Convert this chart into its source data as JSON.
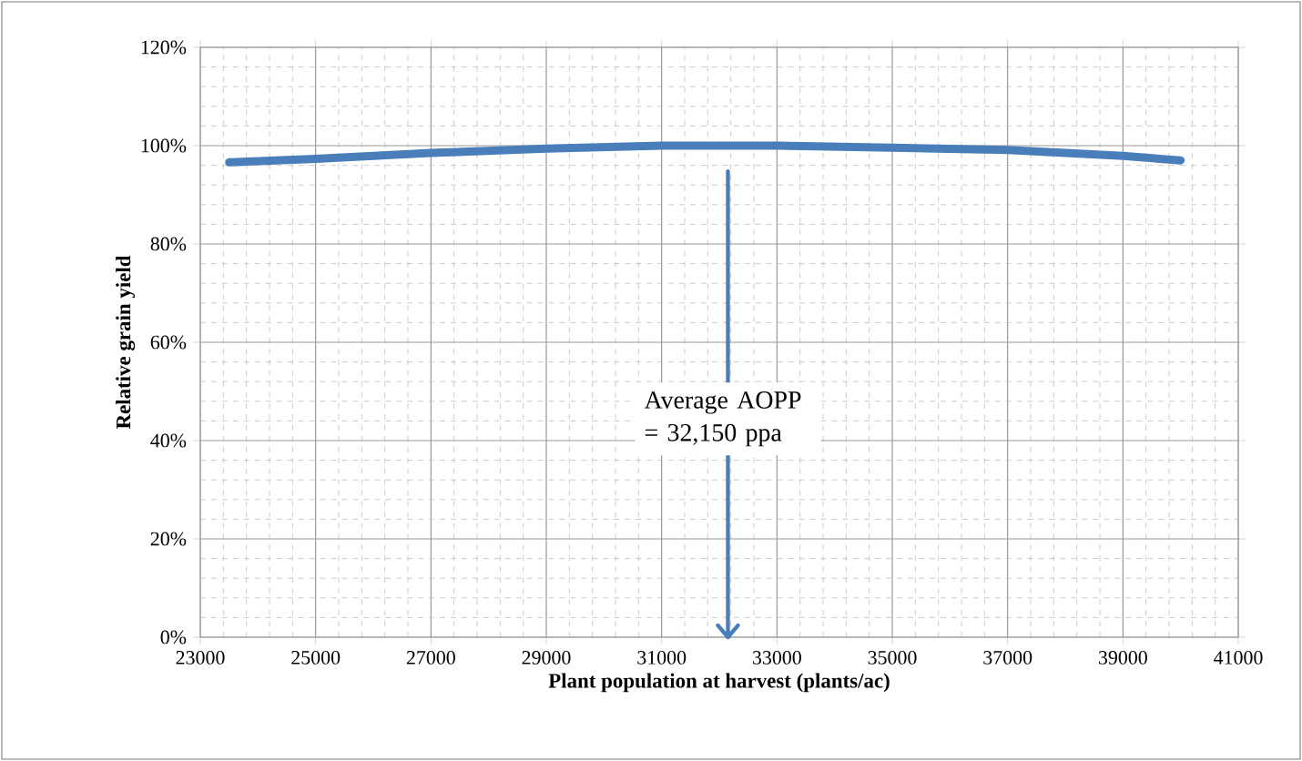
{
  "chart_data": {
    "type": "line",
    "xlabel": "Plant population at harvest (plants/ac)",
    "ylabel": "Relative grain yield",
    "x": [
      23500,
      25000,
      27000,
      29000,
      31000,
      33000,
      35000,
      37000,
      39000,
      40000
    ],
    "series": [
      {
        "color": "#4a7ebb",
        "values": [
          96.6,
          97.3,
          98.5,
          99.4,
          100,
          100,
          99.6,
          99.1,
          97.9,
          97.0
        ]
      }
    ],
    "xlim": [
      23000,
      41000
    ],
    "xticks": [
      23000,
      25000,
      27000,
      29000,
      31000,
      33000,
      35000,
      37000,
      39000,
      41000
    ],
    "ylim": [
      0,
      120
    ],
    "yticks": [
      {
        "value": 0,
        "label": "0%"
      },
      {
        "value": 20,
        "label": "20%"
      },
      {
        "value": 40,
        "label": "40%"
      },
      {
        "value": 60,
        "label": "60%"
      },
      {
        "value": 80,
        "label": "80%"
      },
      {
        "value": 100,
        "label": "100%"
      },
      {
        "value": 120,
        "label": "120%"
      }
    ],
    "ref_lines": [
      {
        "axis": "x",
        "value": 32150,
        "label": "Average AOPP = 32,150 ppa",
        "color": "#4a7ebb"
      }
    ],
    "grid": true,
    "marker": "none",
    "line_style": "solid",
    "legend": false
  }
}
